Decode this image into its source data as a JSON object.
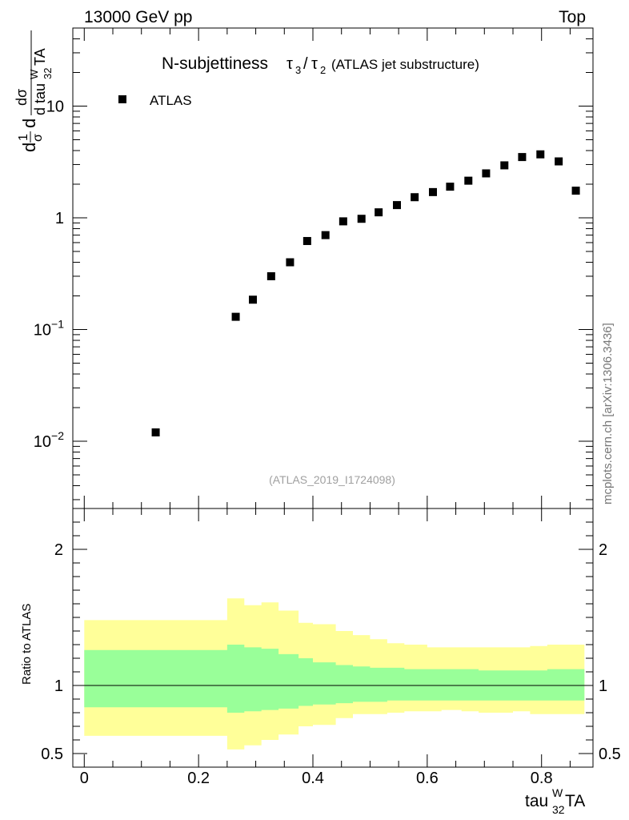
{
  "header": {
    "left": "13000 GeV pp",
    "right": "Top"
  },
  "plot_title": {
    "main": "N-subjettiness",
    "tau": "τ",
    "sub3": "3",
    "slash": "/",
    "sub2": "2",
    "suffix": "(ATLAS jet substructure)"
  },
  "ylabel_top": {
    "d": "d",
    "one": "1",
    "sigma": "σ",
    "dsigma": "dσ",
    "dtau": "d tau",
    "sup": "W",
    "sub": "32",
    "ta": "TA"
  },
  "legend": {
    "label": "ATLAS"
  },
  "analysis_id": "(ATLAS_2019_I1724098)",
  "side_label": "mcplots.cern.ch [arXiv:1306.3436]",
  "ratio_ylabel": "Ratio to ATLAS",
  "xaxis_label": {
    "base": "tau",
    "sup": "W",
    "sub": "32",
    "suffix": "TA"
  },
  "colors": {
    "marker": "#000000",
    "band_inner": "#99ff99",
    "band_outer": "#ffff99",
    "ref_line": "#000000"
  },
  "chart_data": [
    {
      "type": "scatter",
      "title": "N-subjettiness τ3/τ2 (ATLAS jet substructure)",
      "yscale": "log",
      "xlim": [
        -0.02,
        0.89
      ],
      "ylim": [
        0.0025,
        50
      ],
      "x_ticks": [
        "0",
        "0.2",
        "0.4",
        "0.6",
        "0.8"
      ],
      "y_tick_labels": [
        {
          "value": 0.01,
          "base": "10",
          "exp": "−2"
        },
        {
          "value": 0.1,
          "base": "10",
          "exp": "−1"
        },
        {
          "value": 1,
          "base": "1",
          "exp": ""
        },
        {
          "value": 10,
          "base": "10",
          "exp": ""
        }
      ],
      "series": [
        {
          "name": "ATLAS",
          "x": [
            0.125,
            0.265,
            0.295,
            0.327,
            0.36,
            0.39,
            0.422,
            0.453,
            0.485,
            0.515,
            0.547,
            0.578,
            0.61,
            0.64,
            0.672,
            0.703,
            0.735,
            0.766,
            0.798,
            0.83,
            0.86
          ],
          "y": [
            0.012,
            0.13,
            0.185,
            0.3,
            0.4,
            0.62,
            0.7,
            0.93,
            0.98,
            1.12,
            1.3,
            1.53,
            1.7,
            1.9,
            2.15,
            2.5,
            2.95,
            3.5,
            3.7,
            3.2,
            1.75
          ]
        }
      ]
    },
    {
      "type": "area",
      "title": "Ratio to ATLAS",
      "xlim": [
        -0.02,
        0.89
      ],
      "ylim": [
        0.4,
        2.3
      ],
      "y_ticks": [
        "0.5",
        "1",
        "2"
      ],
      "bins": [
        0,
        0.25,
        0.28,
        0.31,
        0.34,
        0.375,
        0.4,
        0.44,
        0.47,
        0.5,
        0.53,
        0.56,
        0.6,
        0.625,
        0.66,
        0.69,
        0.72,
        0.75,
        0.78,
        0.81,
        0.84,
        0.875
      ],
      "inner_low": [
        0.84,
        0.8,
        0.81,
        0.82,
        0.83,
        0.85,
        0.86,
        0.87,
        0.88,
        0.88,
        0.89,
        0.89,
        0.89,
        0.89,
        0.89,
        0.89,
        0.89,
        0.89,
        0.89,
        0.89,
        0.89
      ],
      "inner_high": [
        1.26,
        1.3,
        1.28,
        1.27,
        1.23,
        1.2,
        1.17,
        1.15,
        1.14,
        1.13,
        1.13,
        1.12,
        1.12,
        1.12,
        1.12,
        1.11,
        1.11,
        1.11,
        1.11,
        1.12,
        1.12
      ],
      "outer_low": [
        0.63,
        0.53,
        0.56,
        0.6,
        0.64,
        0.7,
        0.71,
        0.76,
        0.79,
        0.79,
        0.8,
        0.81,
        0.81,
        0.82,
        0.81,
        0.8,
        0.8,
        0.81,
        0.79,
        0.79,
        0.79
      ],
      "outer_high": [
        1.48,
        1.64,
        1.59,
        1.61,
        1.55,
        1.46,
        1.45,
        1.4,
        1.37,
        1.34,
        1.31,
        1.3,
        1.28,
        1.28,
        1.28,
        1.28,
        1.28,
        1.28,
        1.29,
        1.3,
        1.3
      ],
      "reference": 1
    }
  ]
}
